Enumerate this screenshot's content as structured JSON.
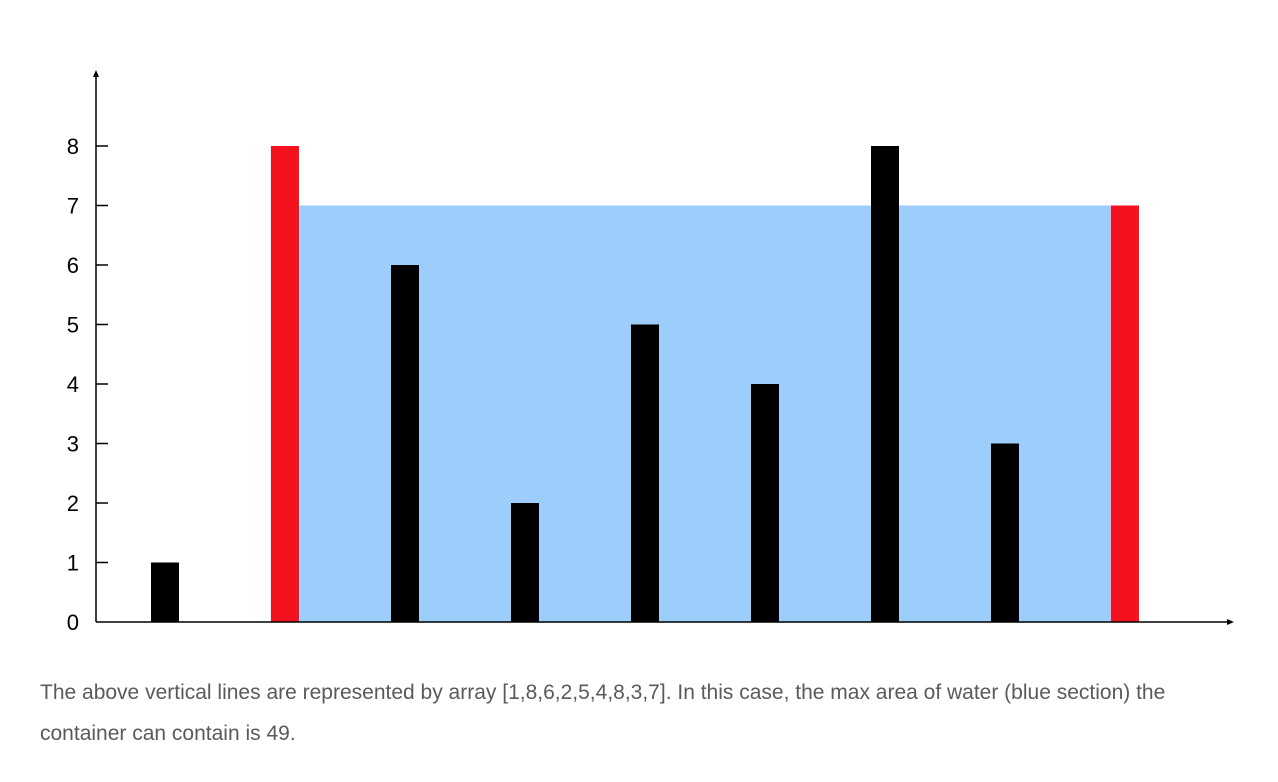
{
  "chart_data": {
    "type": "bar",
    "title": "",
    "xlabel": "",
    "ylabel": "",
    "values": [
      1,
      8,
      6,
      2,
      5,
      4,
      8,
      3,
      7
    ],
    "ylim": [
      0,
      9
    ],
    "y_ticks": [
      "0",
      "1",
      "2",
      "3",
      "4",
      "5",
      "6",
      "7",
      "8"
    ],
    "highlight_indices": [
      1,
      8
    ],
    "water_level": 7,
    "water_span": [
      1,
      8
    ],
    "grid": false,
    "legend": "none",
    "colors": {
      "bar": "#000000",
      "highlight_bar": "#f5121f",
      "water": "#9ccdfb",
      "axis": "#000000"
    }
  },
  "caption": "The above vertical lines are represented by array [1,8,6,2,5,4,8,3,7]. In this case, the max area of water (blue section) the container can contain is 49."
}
